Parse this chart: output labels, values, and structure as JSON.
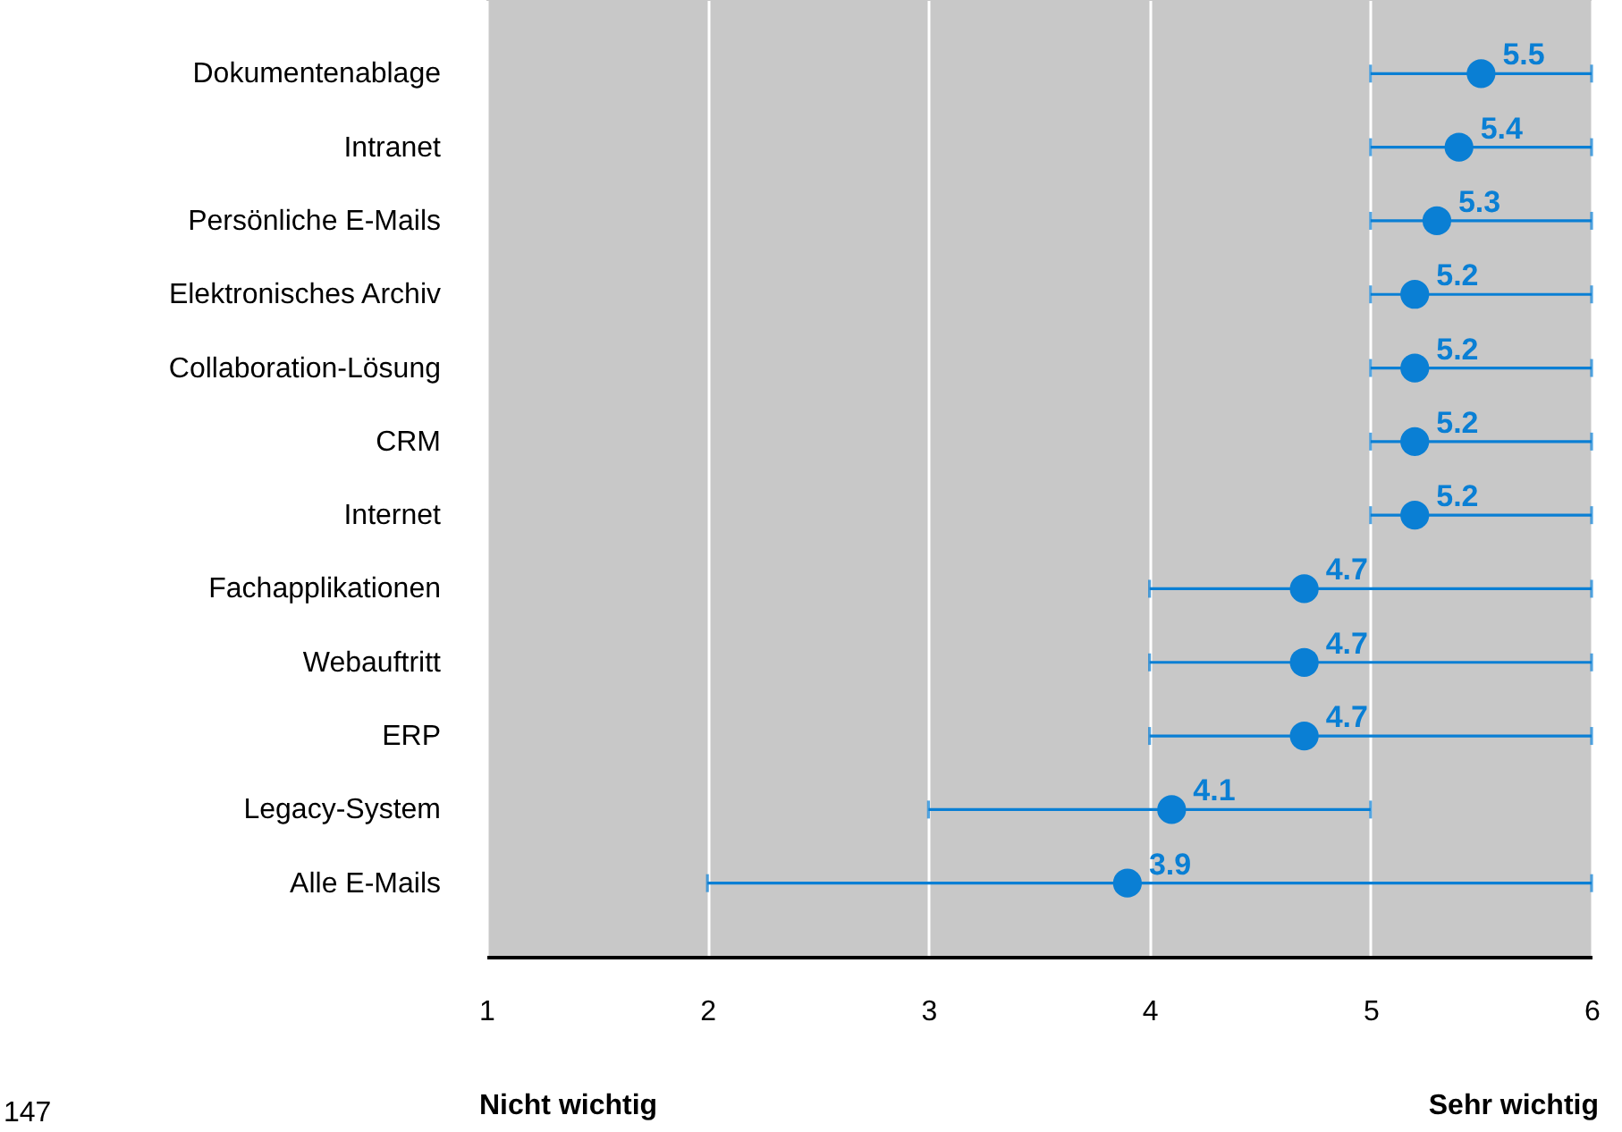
{
  "chart_data": {
    "type": "scatter",
    "orientation": "horizontal",
    "categories": [
      "Dokumentenablage",
      "Intranet",
      "Persönliche E-Mails",
      "Elektronisches Archiv",
      "Collaboration-Lösung",
      "CRM",
      "Internet",
      "Fachapplikationen",
      "Webauftritt",
      "ERP",
      "Legacy-System",
      "Alle E-Mails"
    ],
    "values": [
      5.5,
      5.4,
      5.3,
      5.2,
      5.2,
      5.2,
      5.2,
      4.7,
      4.7,
      4.7,
      4.1,
      3.9
    ],
    "errors": [
      [
        5,
        6
      ],
      [
        5,
        6
      ],
      [
        5,
        6
      ],
      [
        5,
        6
      ],
      [
        5,
        6
      ],
      [
        5,
        6
      ],
      [
        5,
        6
      ],
      [
        4,
        6
      ],
      [
        4,
        6
      ],
      [
        4,
        6
      ],
      [
        3,
        5
      ],
      [
        2,
        6
      ]
    ],
    "color": "#0a7fd4",
    "marker": "circle",
    "data_labels": true,
    "xlim": [
      1,
      6
    ],
    "xticks": [
      1,
      2,
      3,
      4,
      5,
      6
    ],
    "grid": "x",
    "annotations": [
      "Nicht wichtig",
      "Sehr wichtig",
      "147"
    ]
  }
}
